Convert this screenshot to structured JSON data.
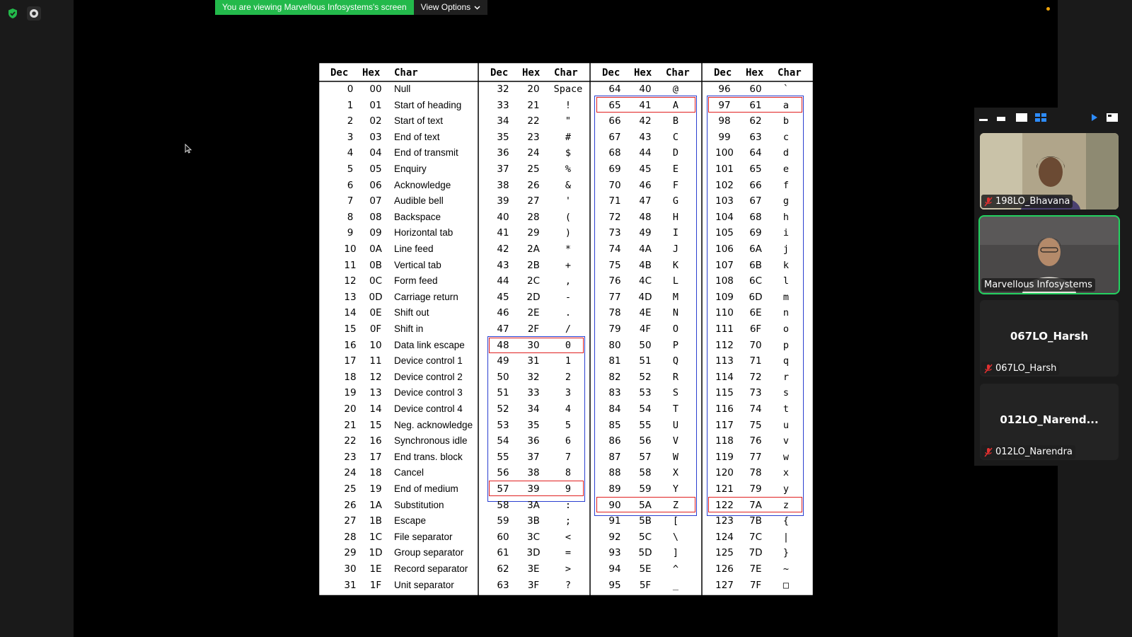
{
  "banner": {
    "sharing_text": "You are viewing Marvellous Infosystems's screen",
    "view_options": "View Options"
  },
  "ascii_table": {
    "headers": [
      {
        "dec": "Dec",
        "hex": "Hex",
        "char": "Char"
      },
      {
        "dec": "Dec",
        "hex": "Hex",
        "char": "Char"
      },
      {
        "dec": "Dec",
        "hex": "Hex",
        "char": "Char"
      },
      {
        "dec": "Dec",
        "hex": "Hex",
        "char": "Char"
      }
    ],
    "col1": [
      [
        "0",
        "00",
        "Null"
      ],
      [
        "1",
        "01",
        "Start of heading"
      ],
      [
        "2",
        "02",
        "Start of text"
      ],
      [
        "3",
        "03",
        "End of text"
      ],
      [
        "4",
        "04",
        "End of transmit"
      ],
      [
        "5",
        "05",
        "Enquiry"
      ],
      [
        "6",
        "06",
        "Acknowledge"
      ],
      [
        "7",
        "07",
        "Audible bell"
      ],
      [
        "8",
        "08",
        "Backspace"
      ],
      [
        "9",
        "09",
        "Horizontal tab"
      ],
      [
        "10",
        "0A",
        "Line feed"
      ],
      [
        "11",
        "0B",
        "Vertical tab"
      ],
      [
        "12",
        "0C",
        "Form feed"
      ],
      [
        "13",
        "0D",
        "Carriage return"
      ],
      [
        "14",
        "0E",
        "Shift out"
      ],
      [
        "15",
        "0F",
        "Shift in"
      ],
      [
        "16",
        "10",
        "Data link escape"
      ],
      [
        "17",
        "11",
        "Device control 1"
      ],
      [
        "18",
        "12",
        "Device control 2"
      ],
      [
        "19",
        "13",
        "Device control 3"
      ],
      [
        "20",
        "14",
        "Device control 4"
      ],
      [
        "21",
        "15",
        "Neg. acknowledge"
      ],
      [
        "22",
        "16",
        "Synchronous idle"
      ],
      [
        "23",
        "17",
        "End trans. block"
      ],
      [
        "24",
        "18",
        "Cancel"
      ],
      [
        "25",
        "19",
        "End of medium"
      ],
      [
        "26",
        "1A",
        "Substitution"
      ],
      [
        "27",
        "1B",
        "Escape"
      ],
      [
        "28",
        "1C",
        "File separator"
      ],
      [
        "29",
        "1D",
        "Group separator"
      ],
      [
        "30",
        "1E",
        "Record separator"
      ],
      [
        "31",
        "1F",
        "Unit separator"
      ]
    ],
    "col2": [
      [
        "32",
        "20",
        "Space"
      ],
      [
        "33",
        "21",
        "!"
      ],
      [
        "34",
        "22",
        "\""
      ],
      [
        "35",
        "23",
        "#"
      ],
      [
        "36",
        "24",
        "$"
      ],
      [
        "37",
        "25",
        "%"
      ],
      [
        "38",
        "26",
        "&"
      ],
      [
        "39",
        "27",
        "'"
      ],
      [
        "40",
        "28",
        "("
      ],
      [
        "41",
        "29",
        ")"
      ],
      [
        "42",
        "2A",
        "*"
      ],
      [
        "43",
        "2B",
        "+"
      ],
      [
        "44",
        "2C",
        ","
      ],
      [
        "45",
        "2D",
        "-"
      ],
      [
        "46",
        "2E",
        "."
      ],
      [
        "47",
        "2F",
        "/"
      ],
      [
        "48",
        "30",
        "0"
      ],
      [
        "49",
        "31",
        "1"
      ],
      [
        "50",
        "32",
        "2"
      ],
      [
        "51",
        "33",
        "3"
      ],
      [
        "52",
        "34",
        "4"
      ],
      [
        "53",
        "35",
        "5"
      ],
      [
        "54",
        "36",
        "6"
      ],
      [
        "55",
        "37",
        "7"
      ],
      [
        "56",
        "38",
        "8"
      ],
      [
        "57",
        "39",
        "9"
      ],
      [
        "58",
        "3A",
        ":"
      ],
      [
        "59",
        "3B",
        ";"
      ],
      [
        "60",
        "3C",
        "<"
      ],
      [
        "61",
        "3D",
        "="
      ],
      [
        "62",
        "3E",
        ">"
      ],
      [
        "63",
        "3F",
        "?"
      ]
    ],
    "col3": [
      [
        "64",
        "40",
        "@"
      ],
      [
        "65",
        "41",
        "A"
      ],
      [
        "66",
        "42",
        "B"
      ],
      [
        "67",
        "43",
        "C"
      ],
      [
        "68",
        "44",
        "D"
      ],
      [
        "69",
        "45",
        "E"
      ],
      [
        "70",
        "46",
        "F"
      ],
      [
        "71",
        "47",
        "G"
      ],
      [
        "72",
        "48",
        "H"
      ],
      [
        "73",
        "49",
        "I"
      ],
      [
        "74",
        "4A",
        "J"
      ],
      [
        "75",
        "4B",
        "K"
      ],
      [
        "76",
        "4C",
        "L"
      ],
      [
        "77",
        "4D",
        "M"
      ],
      [
        "78",
        "4E",
        "N"
      ],
      [
        "79",
        "4F",
        "O"
      ],
      [
        "80",
        "50",
        "P"
      ],
      [
        "81",
        "51",
        "Q"
      ],
      [
        "82",
        "52",
        "R"
      ],
      [
        "83",
        "53",
        "S"
      ],
      [
        "84",
        "54",
        "T"
      ],
      [
        "85",
        "55",
        "U"
      ],
      [
        "86",
        "56",
        "V"
      ],
      [
        "87",
        "57",
        "W"
      ],
      [
        "88",
        "58",
        "X"
      ],
      [
        "89",
        "59",
        "Y"
      ],
      [
        "90",
        "5A",
        "Z"
      ],
      [
        "91",
        "5B",
        "["
      ],
      [
        "92",
        "5C",
        "\\"
      ],
      [
        "93",
        "5D",
        "]"
      ],
      [
        "94",
        "5E",
        "^"
      ],
      [
        "95",
        "5F",
        "_"
      ]
    ],
    "col4": [
      [
        "96",
        "60",
        "`"
      ],
      [
        "97",
        "61",
        "a"
      ],
      [
        "98",
        "62",
        "b"
      ],
      [
        "99",
        "63",
        "c"
      ],
      [
        "100",
        "64",
        "d"
      ],
      [
        "101",
        "65",
        "e"
      ],
      [
        "102",
        "66",
        "f"
      ],
      [
        "103",
        "67",
        "g"
      ],
      [
        "104",
        "68",
        "h"
      ],
      [
        "105",
        "69",
        "i"
      ],
      [
        "106",
        "6A",
        "j"
      ],
      [
        "107",
        "6B",
        "k"
      ],
      [
        "108",
        "6C",
        "l"
      ],
      [
        "109",
        "6D",
        "m"
      ],
      [
        "110",
        "6E",
        "n"
      ],
      [
        "111",
        "6F",
        "o"
      ],
      [
        "112",
        "70",
        "p"
      ],
      [
        "113",
        "71",
        "q"
      ],
      [
        "114",
        "72",
        "r"
      ],
      [
        "115",
        "73",
        "s"
      ],
      [
        "116",
        "74",
        "t"
      ],
      [
        "117",
        "75",
        "u"
      ],
      [
        "118",
        "76",
        "v"
      ],
      [
        "119",
        "77",
        "w"
      ],
      [
        "120",
        "78",
        "x"
      ],
      [
        "121",
        "79",
        "y"
      ],
      [
        "122",
        "7A",
        "z"
      ],
      [
        "123",
        "7B",
        "{"
      ],
      [
        "124",
        "7C",
        "|"
      ],
      [
        "125",
        "7D",
        "}"
      ],
      [
        "126",
        "7E",
        "~"
      ],
      [
        "127",
        "7F",
        "□"
      ]
    ],
    "highlight_colors": {
      "red": "#e02020",
      "blue": "#2a3fd0"
    }
  },
  "participants": [
    {
      "name": "198LO_Bhavana",
      "muted": true,
      "has_video": true
    },
    {
      "name": "Marvellous Infosystems",
      "muted": false,
      "has_video": true,
      "active_speaker": true
    },
    {
      "name": "067LO_Harsh",
      "display_name": "067LO_Harsh",
      "muted": true,
      "has_video": false
    },
    {
      "name": "012LO_Narendra",
      "display_name": "012LO_Narend...",
      "muted": true,
      "has_video": false
    }
  ],
  "colors": {
    "accent_green": "#23b94b",
    "speaker_outline": "#23d160",
    "mute_red": "#e03030"
  }
}
